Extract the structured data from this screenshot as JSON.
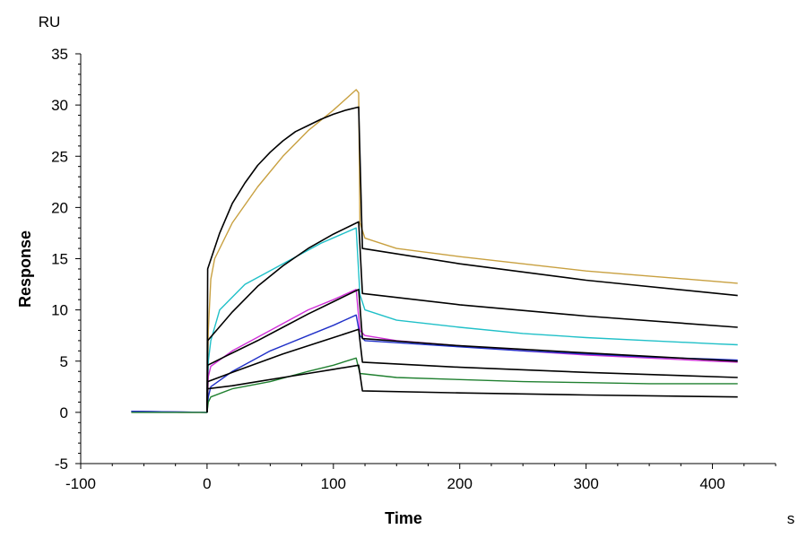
{
  "chart_data": {
    "type": "line",
    "title": "",
    "xlabel": "Time",
    "ylabel": "Response",
    "x_unit": "s",
    "y_unit": "RU",
    "xlim": [
      -100,
      450
    ],
    "ylim": [
      -5,
      35
    ],
    "x_ticks": [
      -100,
      0,
      100,
      200,
      300,
      400
    ],
    "y_ticks": [
      -5,
      0,
      5,
      10,
      15,
      20,
      25,
      30,
      35
    ],
    "grid": false,
    "legend": "none",
    "series": [
      {
        "color": "#c8a040",
        "kind": "measured",
        "points": [
          [
            -60,
            0.1
          ],
          [
            -20,
            0
          ],
          [
            0,
            0
          ],
          [
            1,
            8
          ],
          [
            3,
            13
          ],
          [
            6,
            15
          ],
          [
            20,
            18.5
          ],
          [
            40,
            22
          ],
          [
            60,
            25
          ],
          [
            80,
            27.5
          ],
          [
            100,
            29.5
          ],
          [
            118,
            31.5
          ],
          [
            120,
            31.2
          ],
          [
            121,
            18.5
          ],
          [
            125,
            17
          ],
          [
            150,
            16
          ],
          [
            200,
            15.2
          ],
          [
            250,
            14.5
          ],
          [
            300,
            13.8
          ],
          [
            350,
            13.3
          ],
          [
            400,
            12.8
          ],
          [
            420,
            12.6
          ]
        ]
      },
      {
        "color": "#20c0c8",
        "kind": "measured",
        "points": [
          [
            -60,
            0.1
          ],
          [
            0,
            0
          ],
          [
            1,
            5
          ],
          [
            3,
            7
          ],
          [
            10,
            10
          ],
          [
            30,
            12.5
          ],
          [
            60,
            14.5
          ],
          [
            90,
            16.5
          ],
          [
            118,
            18
          ],
          [
            121,
            11.5
          ],
          [
            125,
            10
          ],
          [
            150,
            9
          ],
          [
            200,
            8.3
          ],
          [
            250,
            7.7
          ],
          [
            300,
            7.3
          ],
          [
            350,
            7
          ],
          [
            400,
            6.7
          ],
          [
            420,
            6.6
          ]
        ]
      },
      {
        "color": "#d030d8",
        "kind": "measured",
        "points": [
          [
            -60,
            0.1
          ],
          [
            0,
            0
          ],
          [
            1,
            3.5
          ],
          [
            3,
            4.5
          ],
          [
            20,
            6
          ],
          [
            50,
            8
          ],
          [
            80,
            10
          ],
          [
            100,
            11
          ],
          [
            118,
            12
          ],
          [
            121,
            8
          ],
          [
            125,
            7.5
          ],
          [
            150,
            7
          ],
          [
            200,
            6.5
          ],
          [
            250,
            6
          ],
          [
            300,
            5.6
          ],
          [
            350,
            5.3
          ],
          [
            400,
            5
          ],
          [
            420,
            4.9
          ]
        ]
      },
      {
        "color": "#2030c8",
        "kind": "measured",
        "points": [
          [
            -60,
            0.1
          ],
          [
            0,
            0
          ],
          [
            1,
            1.5
          ],
          [
            3,
            2.5
          ],
          [
            20,
            4
          ],
          [
            50,
            6
          ],
          [
            80,
            7.5
          ],
          [
            100,
            8.5
          ],
          [
            118,
            9.5
          ],
          [
            121,
            7.5
          ],
          [
            125,
            7
          ],
          [
            150,
            6.8
          ],
          [
            200,
            6.4
          ],
          [
            250,
            6
          ],
          [
            300,
            5.7
          ],
          [
            350,
            5.4
          ],
          [
            400,
            5.2
          ],
          [
            420,
            5.1
          ]
        ]
      },
      {
        "color": "#208030",
        "kind": "measured",
        "points": [
          [
            -60,
            0
          ],
          [
            0,
            0
          ],
          [
            1,
            1
          ],
          [
            3,
            1.5
          ],
          [
            20,
            2.3
          ],
          [
            50,
            3
          ],
          [
            80,
            4
          ],
          [
            100,
            4.6
          ],
          [
            118,
            5.3
          ],
          [
            121,
            3.8
          ],
          [
            150,
            3.4
          ],
          [
            200,
            3.2
          ],
          [
            250,
            3
          ],
          [
            300,
            2.9
          ],
          [
            350,
            2.8
          ],
          [
            400,
            2.8
          ],
          [
            420,
            2.8
          ]
        ]
      },
      {
        "color": "#000000",
        "kind": "fit",
        "points": [
          [
            0,
            0
          ],
          [
            0.5,
            14
          ],
          [
            10,
            17.5
          ],
          [
            20,
            20.4
          ],
          [
            30,
            22.4
          ],
          [
            40,
            24.1
          ],
          [
            50,
            25.4
          ],
          [
            60,
            26.5
          ],
          [
            70,
            27.4
          ],
          [
            80,
            28
          ],
          [
            90,
            28.6
          ],
          [
            100,
            29.1
          ],
          [
            110,
            29.5
          ],
          [
            120,
            29.8
          ],
          [
            123,
            16
          ],
          [
            200,
            14.5
          ],
          [
            300,
            12.9
          ],
          [
            420,
            11.4
          ]
        ]
      },
      {
        "color": "#000000",
        "kind": "fit",
        "points": [
          [
            0,
            0
          ],
          [
            0.5,
            7
          ],
          [
            20,
            9.8
          ],
          [
            40,
            12.3
          ],
          [
            60,
            14.3
          ],
          [
            80,
            16
          ],
          [
            100,
            17.4
          ],
          [
            120,
            18.6
          ],
          [
            123,
            11.6
          ],
          [
            200,
            10.5
          ],
          [
            300,
            9.4
          ],
          [
            420,
            8.3
          ]
        ]
      },
      {
        "color": "#000000",
        "kind": "fit",
        "points": [
          [
            0,
            0
          ],
          [
            0.5,
            4.6
          ],
          [
            20,
            5.8
          ],
          [
            40,
            7
          ],
          [
            60,
            8.3
          ],
          [
            80,
            9.6
          ],
          [
            100,
            10.8
          ],
          [
            120,
            12
          ],
          [
            123,
            7.2
          ],
          [
            200,
            6.5
          ],
          [
            300,
            5.8
          ],
          [
            420,
            5
          ]
        ]
      },
      {
        "color": "#000000",
        "kind": "fit",
        "points": [
          [
            0,
            0
          ],
          [
            0.5,
            3
          ],
          [
            20,
            3.9
          ],
          [
            40,
            4.8
          ],
          [
            60,
            5.7
          ],
          [
            80,
            6.5
          ],
          [
            100,
            7.3
          ],
          [
            120,
            8.1
          ],
          [
            123,
            4.9
          ],
          [
            200,
            4.4
          ],
          [
            300,
            3.9
          ],
          [
            420,
            3.4
          ]
        ]
      },
      {
        "color": "#000000",
        "kind": "fit",
        "points": [
          [
            0,
            0
          ],
          [
            0.5,
            2.3
          ],
          [
            20,
            2.6
          ],
          [
            40,
            3
          ],
          [
            60,
            3.4
          ],
          [
            80,
            3.8
          ],
          [
            100,
            4.2
          ],
          [
            120,
            4.6
          ],
          [
            123,
            2.1
          ],
          [
            200,
            1.9
          ],
          [
            300,
            1.7
          ],
          [
            420,
            1.5
          ]
        ]
      }
    ]
  }
}
